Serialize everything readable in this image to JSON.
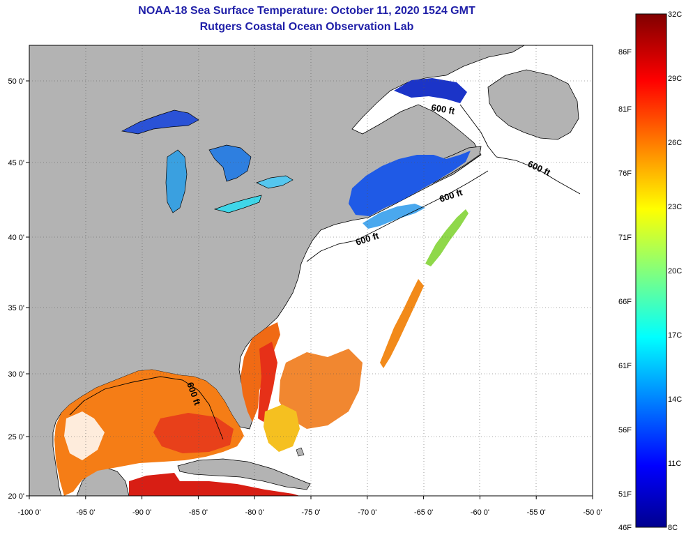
{
  "title": {
    "line1": "NOAA-18 Sea Surface Temperature:  October 11, 2020 1524 GMT",
    "line2": "Rutgers Coastal Ocean Observation Lab"
  },
  "map": {
    "lon_range": [
      -100,
      -50
    ],
    "lat_range": [
      20,
      52
    ],
    "lon_ticks": [
      "-100 0'",
      "-95 0'",
      "-90 0'",
      "-85 0'",
      "-80 0'",
      "-75 0'",
      "-70 0'",
      "-65 0'",
      "-60 0'",
      "-55 0'",
      "-50 0'"
    ],
    "lat_ticks": [
      "20 0'",
      "25 0'",
      "30 0'",
      "35 0'",
      "40 0'",
      "45 0'",
      "50 0'"
    ],
    "isobath_labels": [
      "600 ft",
      "600 ft",
      "600 ft",
      "600 ft",
      "600 ft"
    ],
    "land_color": "#b3b3b3",
    "no_data_color": "#ffffff"
  },
  "colorbar": {
    "celsius": [
      "32C",
      "29C",
      "26C",
      "23C",
      "20C",
      "17C",
      "14C",
      "11C",
      "8C"
    ],
    "fahrenheit": [
      "86F",
      "81F",
      "76F",
      "71F",
      "66F",
      "61F",
      "56F",
      "51F",
      "46F"
    ],
    "range_c": [
      8,
      32
    ]
  }
}
